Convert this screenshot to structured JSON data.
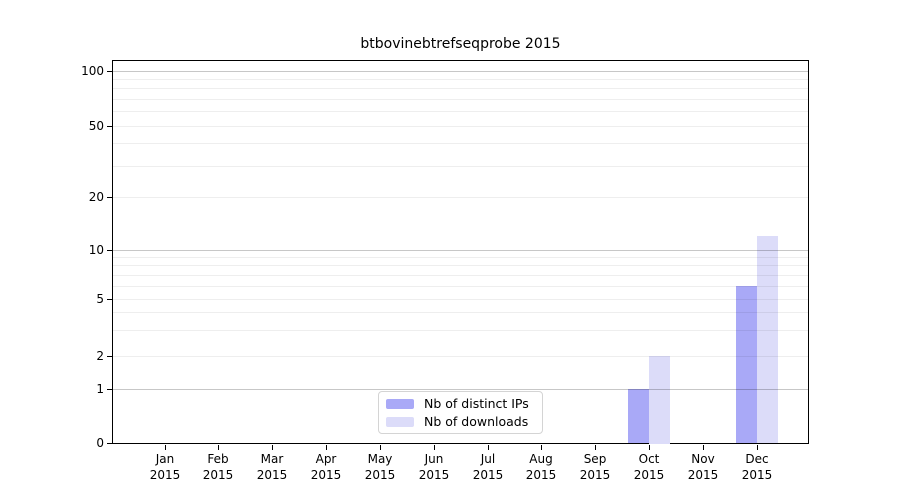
{
  "title": "btbovinebtrefseqprobe 2015",
  "colors": {
    "distinct_ips": "#a9a9f7",
    "downloads": "#dcdcf9",
    "axis": "#000000",
    "grid_faint": "#ececec",
    "grid_emphasized": "#c6c6c6",
    "background": "#ffffff"
  },
  "legend": {
    "items": [
      {
        "label": "Nb of distinct IPs",
        "color": "#a9a9f7"
      },
      {
        "label": "Nb of downloads",
        "color": "#dcdcf9"
      }
    ]
  },
  "y_axis": {
    "tick_labels": [
      "100",
      "50",
      "20",
      "10",
      "5",
      "2",
      "1",
      "0"
    ],
    "tick_values": [
      100,
      50,
      20,
      10,
      5,
      2,
      1,
      0
    ],
    "grid_faint_values": [
      2,
      3,
      4,
      5,
      6,
      7,
      8,
      9,
      20,
      30,
      40,
      50,
      60,
      70,
      80,
      90
    ],
    "grid_emphasized_values": [
      1,
      10,
      100
    ]
  },
  "x_axis": {
    "months": [
      "Jan",
      "Feb",
      "Mar",
      "Apr",
      "May",
      "Jun",
      "Jul",
      "Aug",
      "Sep",
      "Oct",
      "Nov",
      "Dec"
    ],
    "year": "2015"
  },
  "chart_data": {
    "type": "bar",
    "title": "btbovinebtrefseqprobe 2015",
    "x": [
      "Jan 2015",
      "Feb 2015",
      "Mar 2015",
      "Apr 2015",
      "May 2015",
      "Jun 2015",
      "Jul 2015",
      "Aug 2015",
      "Sep 2015",
      "Oct 2015",
      "Nov 2015",
      "Dec 2015"
    ],
    "series": [
      {
        "name": "Nb of distinct IPs",
        "color": "#a9a9f7",
        "values": [
          0,
          0,
          0,
          0,
          0,
          0,
          0,
          0,
          0,
          1,
          0,
          6
        ]
      },
      {
        "name": "Nb of downloads",
        "color": "#dcdcf9",
        "values": [
          0,
          0,
          0,
          0,
          0,
          0,
          0,
          0,
          0,
          2,
          0,
          12
        ]
      }
    ],
    "yscale": "log-like (0,1,2,5,10,20,50,100)",
    "ylim": [
      0,
      114
    ],
    "xlabel": "",
    "ylabel": "",
    "grid": "horizontal",
    "legend_position": "lower center"
  }
}
